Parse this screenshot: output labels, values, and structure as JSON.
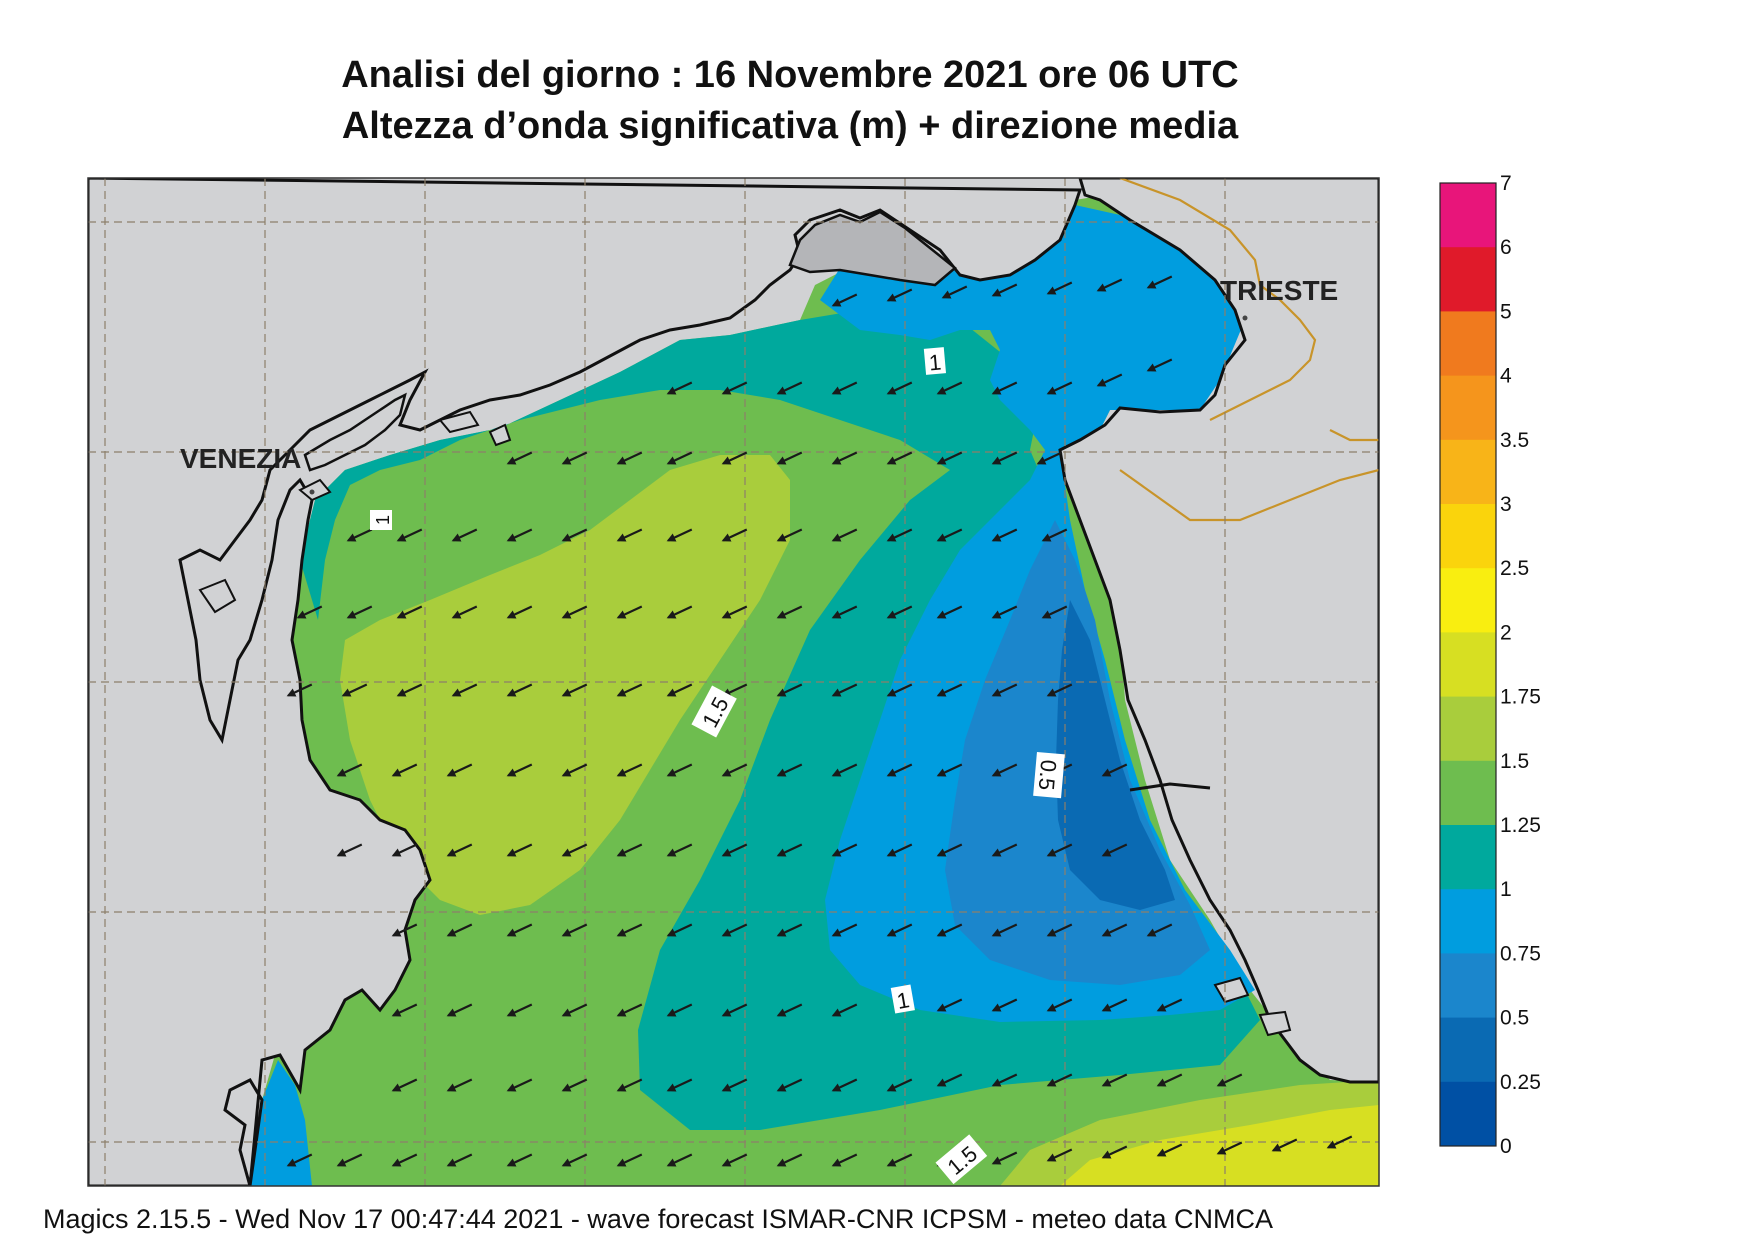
{
  "title": {
    "line1": "Analisi del giorno :  16 Novembre  2021   ore 06 UTC",
    "line2": "Altezza d’onda significativa (m) + direzione media"
  },
  "footer": "Magics 2.15.5 - Wed Nov 17 00:47:44 2021 - wave forecast  ISMAR-CNR  ICPSM - meteo data   CNMCA",
  "cities": {
    "venezia": "VENEZIA",
    "trieste": "TRIESTE"
  },
  "contour_labels": [
    "1",
    "1.5",
    "0.5",
    "1",
    "1.5",
    "1"
  ],
  "legend": {
    "ticks": [
      "7",
      "6",
      "5",
      "4",
      "3.5",
      "3",
      "2.5",
      "2",
      "1.75",
      "1.5",
      "1.25",
      "1",
      "0.75",
      "0.5",
      "0.25",
      "0"
    ],
    "colors": [
      "#e8157a",
      "#e01a2a",
      "#f07a1e",
      "#f5951c",
      "#f8b418",
      "#fad40c",
      "#f9ee10",
      "#d7df22",
      "#a9cd3c",
      "#6ebd4f",
      "#00a99d",
      "#009ddf",
      "#1b86cc",
      "#0a6ab3",
      "#0050a4"
    ]
  },
  "colors": {
    "land": "#d1d2d4",
    "border": "#c8942a",
    "grid": "#8d7f6a",
    "arrow": "#1a1a1a"
  },
  "wave_field": {
    "mean_direction": "SW",
    "units": "m"
  }
}
